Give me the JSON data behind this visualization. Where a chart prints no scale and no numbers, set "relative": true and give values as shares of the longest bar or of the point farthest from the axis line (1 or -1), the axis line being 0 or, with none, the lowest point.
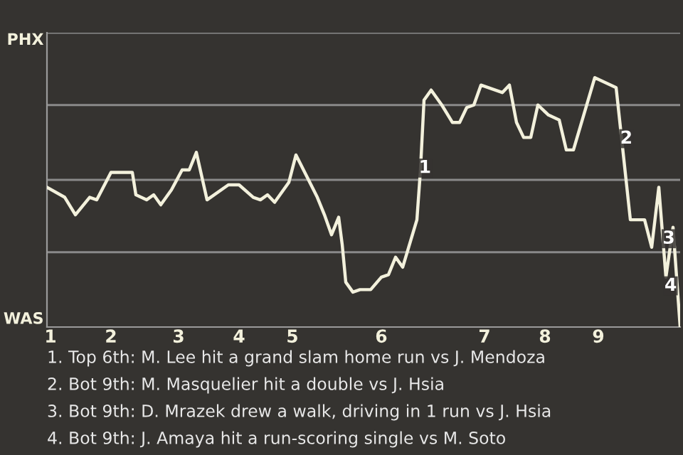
{
  "chart_data": {
    "type": "line",
    "relative": true,
    "categories": [
      null,
      "1",
      null,
      null,
      null,
      null,
      null,
      null,
      null,
      null,
      null,
      null,
      null,
      null,
      null,
      null,
      null,
      null,
      "2",
      null,
      null,
      null,
      null,
      null,
      null,
      null,
      null,
      null,
      null,
      null,
      null,
      null,
      null,
      null,
      null,
      null,
      null,
      "3",
      null,
      null,
      null,
      null,
      null,
      null,
      null,
      null,
      null,
      null,
      null,
      null,
      null,
      null,
      null,
      null,
      "4",
      null,
      null,
      null,
      null,
      null,
      null,
      null,
      null,
      null,
      null,
      null,
      null,
      null,
      null,
      "5",
      null,
      null,
      null,
      null,
      null,
      null,
      null,
      null,
      null,
      null,
      null,
      null,
      null,
      null,
      null,
      null,
      null,
      null,
      null,
      null,
      null,
      null,
      null,
      null,
      "6",
      null,
      null,
      null,
      null,
      null,
      null,
      null,
      null,
      null,
      null,
      null,
      null,
      null,
      null,
      null,
      null,
      null,
      null,
      null,
      null,
      null,
      null,
      null,
      null,
      null,
      null,
      null,
      null,
      "7",
      null,
      null,
      null,
      null,
      null,
      null,
      null,
      null,
      null,
      null,
      null,
      null,
      null,
      null,
      null,
      null,
      "8",
      null,
      null,
      null,
      null,
      null,
      null,
      null,
      null,
      null,
      null,
      null,
      null,
      null,
      null,
      "9",
      null,
      null,
      null,
      null,
      null,
      null,
      null,
      null,
      null,
      null,
      null,
      null,
      null,
      null,
      null,
      null,
      null,
      null,
      null,
      null,
      null,
      null,
      null
    ],
    "series": [
      {
        "color": "#f3f1dc",
        "values": [
          0.56,
          null,
          null,
          null,
          null,
          0.52,
          null,
          null,
          0.45,
          null,
          null,
          null,
          0.52,
          null,
          0.51,
          null,
          null,
          null,
          0.62,
          null,
          null,
          null,
          null,
          null,
          0.62,
          0.53,
          null,
          null,
          0.51,
          null,
          0.53,
          null,
          0.49,
          null,
          null,
          0.55,
          null,
          null,
          0.63,
          null,
          0.63,
          null,
          0.7,
          null,
          null,
          0.51,
          null,
          null,
          null,
          null,
          null,
          0.57,
          null,
          null,
          0.57,
          null,
          null,
          null,
          0.52,
          null,
          0.51,
          null,
          0.53,
          null,
          0.5,
          null,
          null,
          null,
          0.58,
          null,
          0.69,
          null,
          null,
          null,
          null,
          null,
          0.52,
          null,
          0.45,
          null,
          0.37,
          null,
          0.44,
          0.33,
          0.18,
          null,
          0.14,
          null,
          0.15,
          null,
          null,
          0.15,
          null,
          null,
          0.2,
          null,
          0.21,
          null,
          0.28,
          null,
          0.24,
          null,
          null,
          null,
          0.43,
          0.63,
          0.91,
          null,
          0.95,
          null,
          null,
          0.89,
          null,
          null,
          0.82,
          null,
          0.82,
          null,
          0.88,
          null,
          0.89,
          null,
          0.97,
          null,
          null,
          null,
          null,
          null,
          0.94,
          null,
          0.97,
          null,
          0.82,
          null,
          0.76,
          null,
          0.76,
          null,
          0.89,
          null,
          null,
          0.85,
          null,
          null,
          0.83,
          null,
          0.71,
          null,
          0.71,
          null,
          null,
          null,
          null,
          null,
          1.0,
          null,
          null,
          null,
          null,
          null,
          0.96,
          null,
          null,
          null,
          0.43,
          null,
          null,
          null,
          0.43,
          null,
          0.32,
          null,
          0.56,
          null,
          0.2,
          null,
          0.4,
          null,
          0.0
        ]
      }
    ],
    "marker": "none",
    "line_style": "solid",
    "ref_lines": [
      {
        "axis": "y",
        "value": 0.3,
        "label": null,
        "color": "#8a8a8a"
      },
      {
        "axis": "y",
        "value": 0.59,
        "label": null,
        "color": "#8a8a8a"
      },
      {
        "axis": "y",
        "value": 0.89,
        "label": null,
        "color": "#8a8a8a"
      },
      {
        "axis": "y",
        "value": 1.18,
        "label": null,
        "color": "#8a8a8a"
      }
    ],
    "annotations": [
      "PHX",
      "WAS",
      "1",
      "2",
      "3",
      "4",
      "1. Top 6th: M. Lee hit a grand slam home run vs J. Mendoza",
      "2. Bot 9th: M. Masquelier hit a double vs J. Hsia",
      "3. Bot 9th: D. Mrazek drew a walk, driving in 1 run vs J. Hsia",
      "4. Bot 9th: J. Amaya hit a run-scoring single vs M. Soto"
    ]
  }
}
